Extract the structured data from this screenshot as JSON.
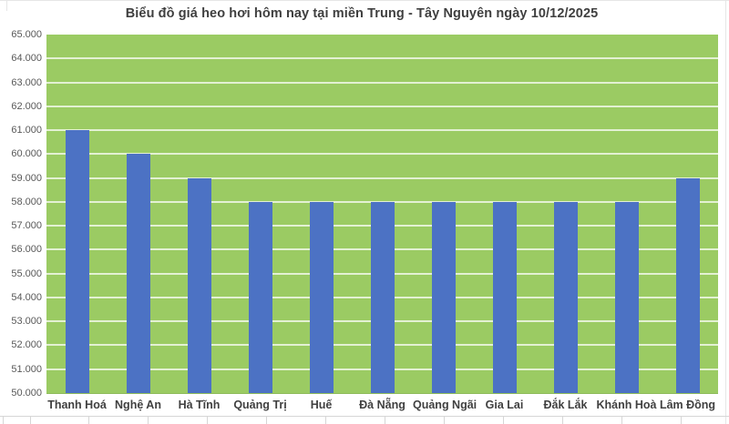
{
  "chart_data": {
    "type": "bar",
    "title": "Biểu đồ giá heo hơi hôm nay tại miền Trung - Tây Nguyên ngày 10/12/2025",
    "categories": [
      "Thanh Hoá",
      "Nghệ An",
      "Hà Tĩnh",
      "Quảng Trị",
      "Huế",
      "Đà Nẵng",
      "Quảng Ngãi",
      "Gia Lai",
      "Đắk Lắk",
      "Khánh Hoà",
      "Lâm Đồng"
    ],
    "values": [
      61000,
      60000,
      59000,
      58000,
      58000,
      58000,
      58000,
      58000,
      58000,
      58000,
      59000
    ],
    "xlabel": "",
    "ylabel": "",
    "ylim": [
      50000,
      65000
    ],
    "ytick_step": 1000,
    "ytick_labels": [
      "50.000",
      "51.000",
      "52.000",
      "53.000",
      "54.000",
      "55.000",
      "56.000",
      "57.000",
      "58.000",
      "59.000",
      "60.000",
      "61.000",
      "62.000",
      "63.000",
      "64.000",
      "65.000"
    ],
    "grid": true,
    "legend": false,
    "colors": {
      "bar": "#4C72C4",
      "plot_background": "#9BCB63",
      "gridline": "#FFFFFF",
      "title_text": "#3F3F3F",
      "y_tick_text": "#595959",
      "x_tick_text": "#404040"
    }
  }
}
